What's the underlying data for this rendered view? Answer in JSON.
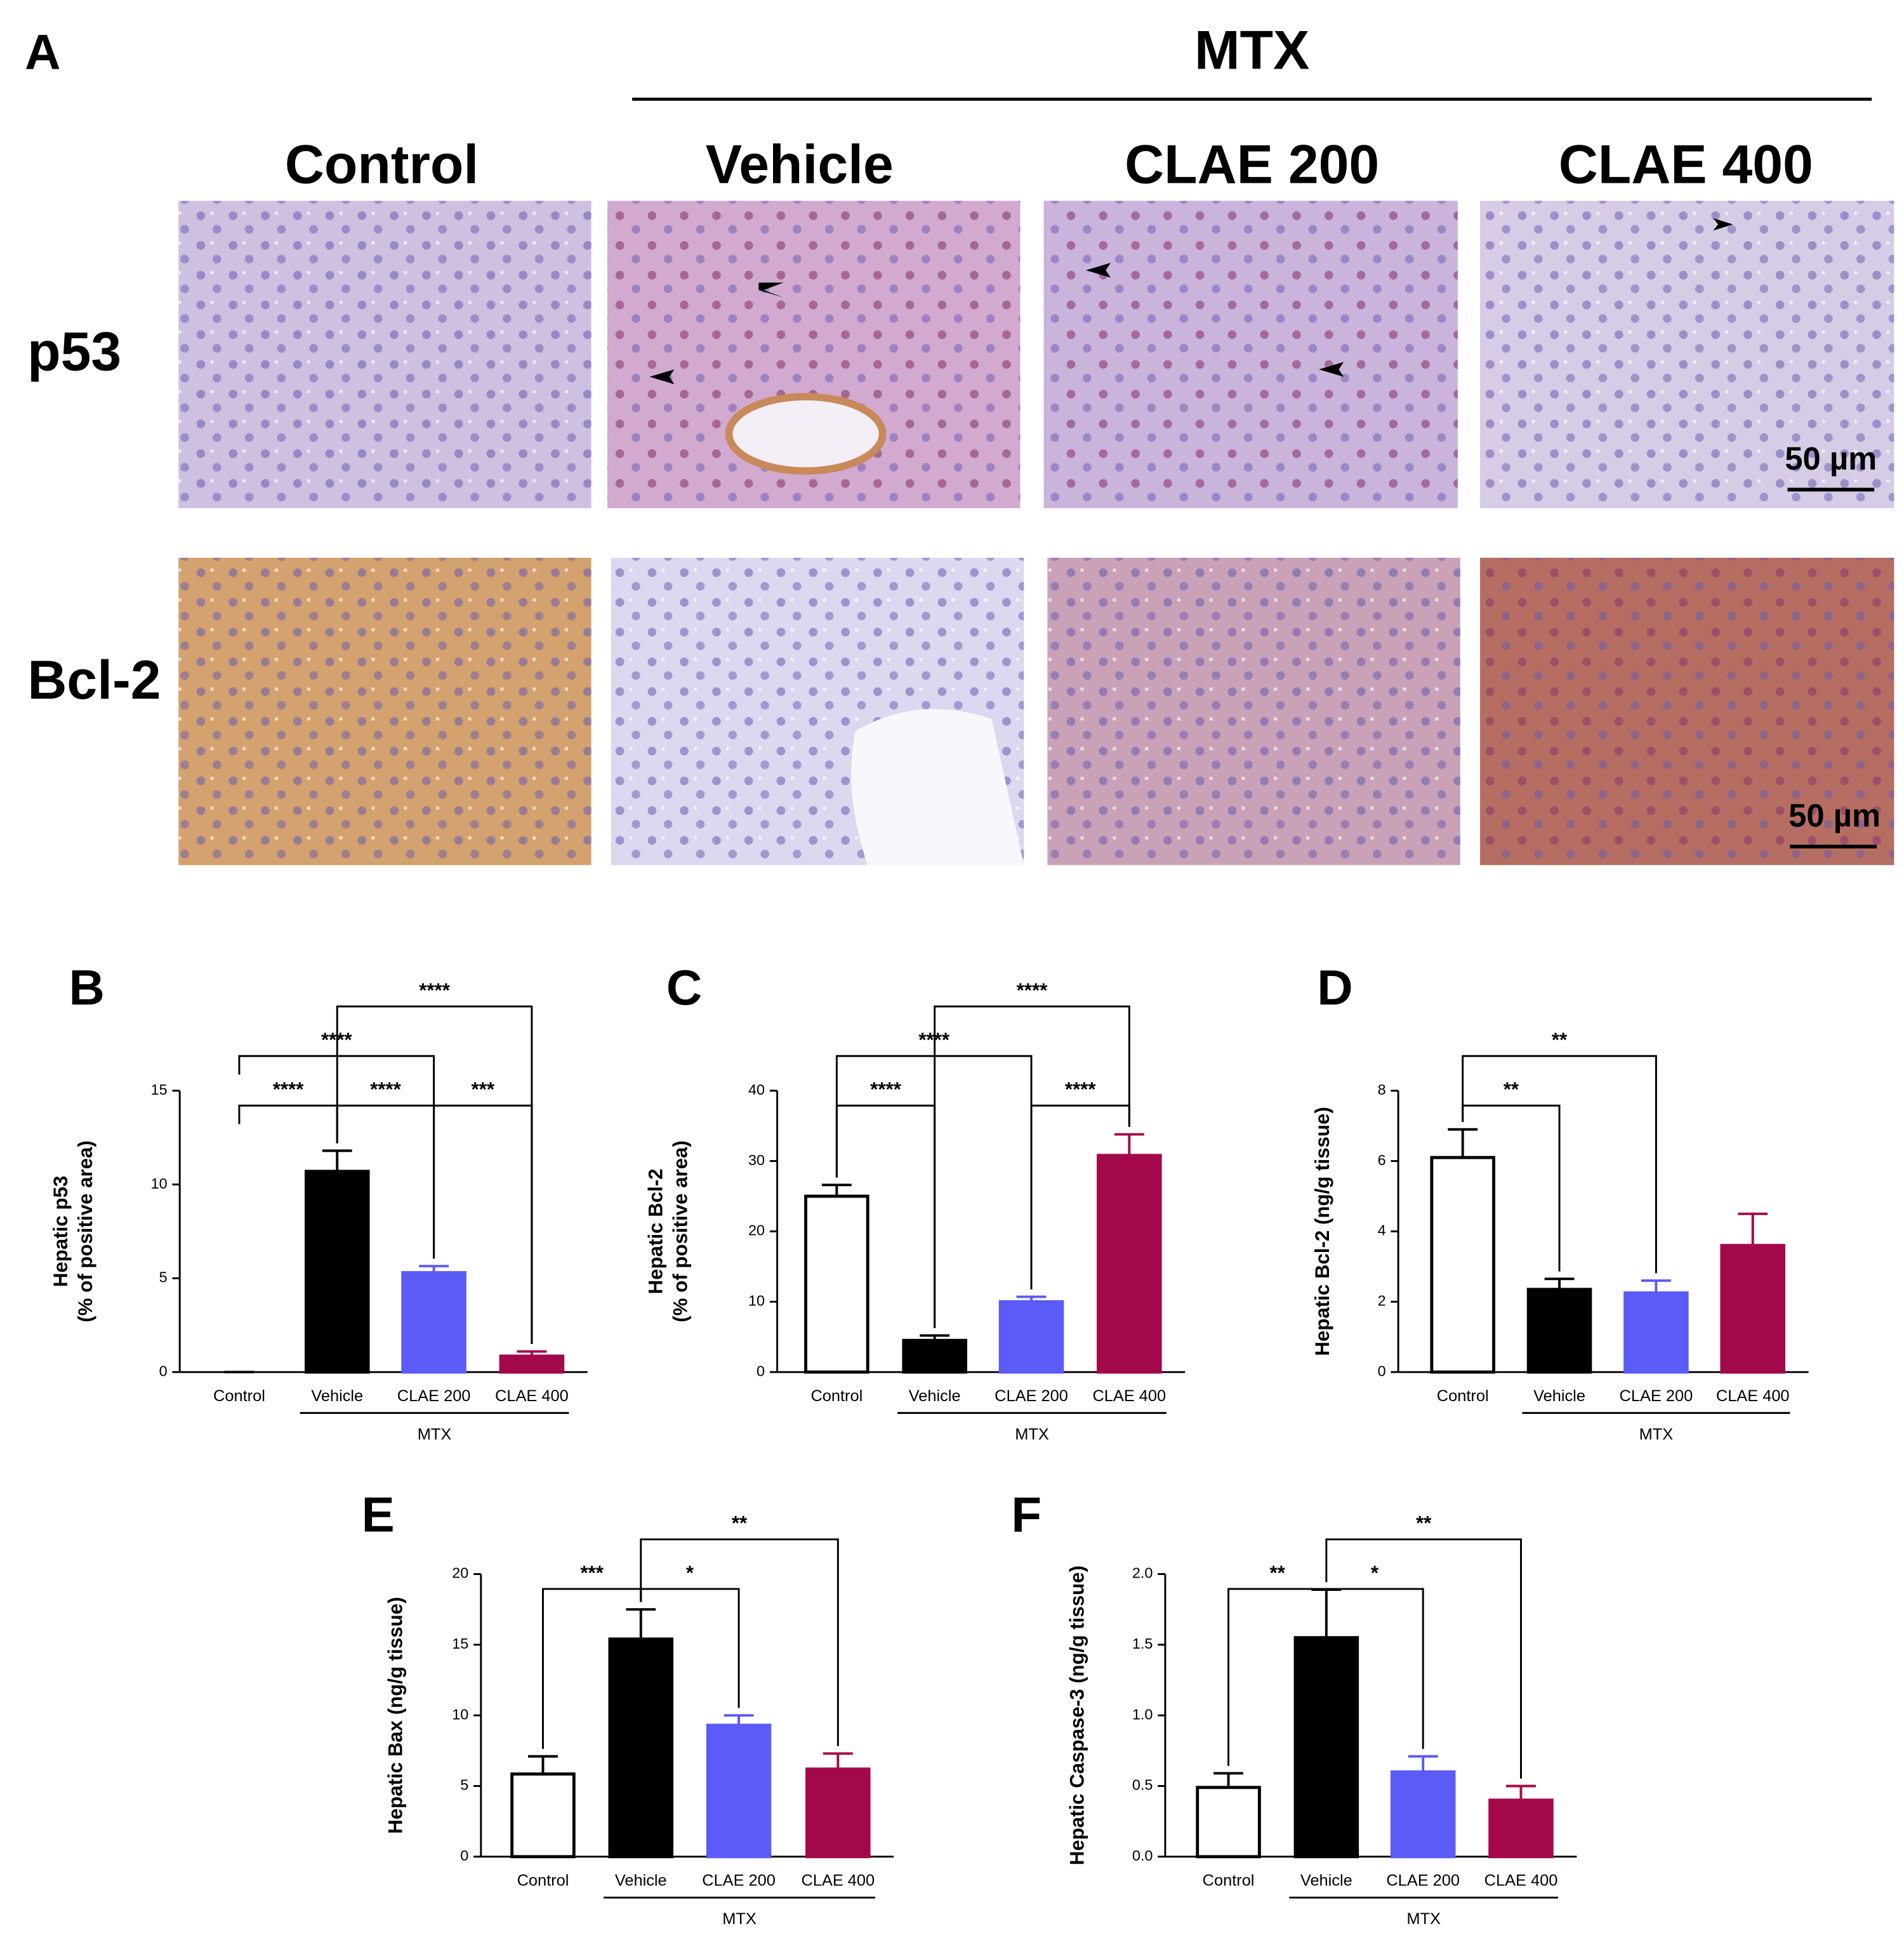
{
  "panel_a": {
    "label": "A",
    "group": "MTX",
    "columns": [
      "Control",
      "Vehicle",
      "CLAE 200",
      "CLAE 400"
    ],
    "rows": [
      "p53",
      "Bcl-2"
    ],
    "scale_bars": [
      "50 µm",
      "50 µm"
    ]
  },
  "chart_data": [
    {
      "type": "bar",
      "panel": "B",
      "ylabel": [
        "Hepatic p53",
        "(% of positive area)"
      ],
      "categories": [
        "Control",
        "Vehicle",
        "CLAE 200",
        "CLAE 400"
      ],
      "values": [
        0,
        10.7,
        5.3,
        0.85
      ],
      "errors": [
        0,
        1.1,
        0.35,
        0.25
      ],
      "colors": [
        "#ffffff",
        "#000000",
        "#5b5bf7",
        "#a3084b"
      ],
      "group": {
        "label": "MTX",
        "from": 1,
        "to": 3
      },
      "ylim": [
        0,
        15
      ],
      "yticks": [
        0,
        5,
        10,
        15
      ],
      "significance": [
        {
          "from": 0,
          "to": 1,
          "label": "****"
        },
        {
          "from": 1,
          "to": 2,
          "label": "****"
        },
        {
          "from": 2,
          "to": 3,
          "label": "***"
        },
        {
          "from": 0,
          "to": 2,
          "label": "****"
        },
        {
          "from": 1,
          "to": 3,
          "label": "****"
        }
      ]
    },
    {
      "type": "bar",
      "panel": "C",
      "ylabel": [
        "Hepatic Bcl-2",
        "(% of positive area)"
      ],
      "categories": [
        "Control",
        "Vehicle",
        "CLAE 200",
        "CLAE 400"
      ],
      "values": [
        25,
        4.5,
        10,
        30.8
      ],
      "errors": [
        1.6,
        0.7,
        0.7,
        3
      ],
      "colors": [
        "#ffffff",
        "#000000",
        "#5b5bf7",
        "#a3084b"
      ],
      "group": {
        "label": "MTX",
        "from": 1,
        "to": 3
      },
      "ylim": [
        0,
        40
      ],
      "yticks": [
        0,
        10,
        20,
        30,
        40
      ],
      "significance": [
        {
          "from": 0,
          "to": 1,
          "label": "****"
        },
        {
          "from": 2,
          "to": 3,
          "label": "****"
        },
        {
          "from": 0,
          "to": 2,
          "label": "****"
        },
        {
          "from": 1,
          "to": 3,
          "label": "****"
        }
      ]
    },
    {
      "type": "bar",
      "panel": "D",
      "ylabel": [
        "Hepatic Bcl-2 (ng/g tissue)"
      ],
      "categories": [
        "Control",
        "Vehicle",
        "CLAE 200",
        "CLAE 400"
      ],
      "values": [
        6.1,
        2.35,
        2.25,
        3.6
      ],
      "errors": [
        0.8,
        0.3,
        0.35,
        0.9
      ],
      "colors": [
        "#ffffff",
        "#000000",
        "#5b5bf7",
        "#a3084b"
      ],
      "group": {
        "label": "MTX",
        "from": 1,
        "to": 3
      },
      "ylim": [
        0,
        8
      ],
      "yticks": [
        0,
        2,
        4,
        6,
        8
      ],
      "significance": [
        {
          "from": 0,
          "to": 1,
          "label": "**"
        },
        {
          "from": 0,
          "to": 2,
          "label": "**"
        }
      ]
    },
    {
      "type": "bar",
      "panel": "E",
      "ylabel": [
        "Hepatic Bax (ng/g tissue)"
      ],
      "categories": [
        "Control",
        "Vehicle",
        "CLAE 200",
        "CLAE 400"
      ],
      "values": [
        5.85,
        15.4,
        9.3,
        6.2
      ],
      "errors": [
        1.25,
        2.1,
        0.7,
        1.1
      ],
      "colors": [
        "#ffffff",
        "#000000",
        "#5b5bf7",
        "#a3084b"
      ],
      "group": {
        "label": "MTX",
        "from": 1,
        "to": 3
      },
      "ylim": [
        0,
        20
      ],
      "yticks": [
        0,
        5,
        10,
        15,
        20
      ],
      "significance": [
        {
          "from": 0,
          "to": 1,
          "label": "***"
        },
        {
          "from": 1,
          "to": 2,
          "label": "*"
        },
        {
          "from": 1,
          "to": 3,
          "label": "**"
        }
      ]
    },
    {
      "type": "bar",
      "panel": "F",
      "ylabel": [
        "Hepatic Caspase-3 (ng/g tissue)"
      ],
      "categories": [
        "Control",
        "Vehicle",
        "CLAE 200",
        "CLAE 400"
      ],
      "values": [
        0.49,
        1.55,
        0.6,
        0.4
      ],
      "errors": [
        0.1,
        0.34,
        0.11,
        0.1
      ],
      "colors": [
        "#ffffff",
        "#000000",
        "#5b5bf7",
        "#a3084b"
      ],
      "group": {
        "label": "MTX",
        "from": 1,
        "to": 3
      },
      "ylim": [
        0,
        2
      ],
      "yticks": [
        {
          "value": 0,
          "label": "0.0"
        },
        {
          "value": 0.5,
          "label": "0.5"
        },
        {
          "value": 1,
          "label": "1.0"
        },
        {
          "value": 1.5,
          "label": "1.5"
        },
        {
          "value": 2,
          "label": "2.0"
        }
      ],
      "significance": [
        {
          "from": 0,
          "to": 1,
          "label": "**"
        },
        {
          "from": 1,
          "to": 2,
          "label": "*"
        },
        {
          "from": 1,
          "to": 3,
          "label": "**"
        }
      ]
    }
  ]
}
